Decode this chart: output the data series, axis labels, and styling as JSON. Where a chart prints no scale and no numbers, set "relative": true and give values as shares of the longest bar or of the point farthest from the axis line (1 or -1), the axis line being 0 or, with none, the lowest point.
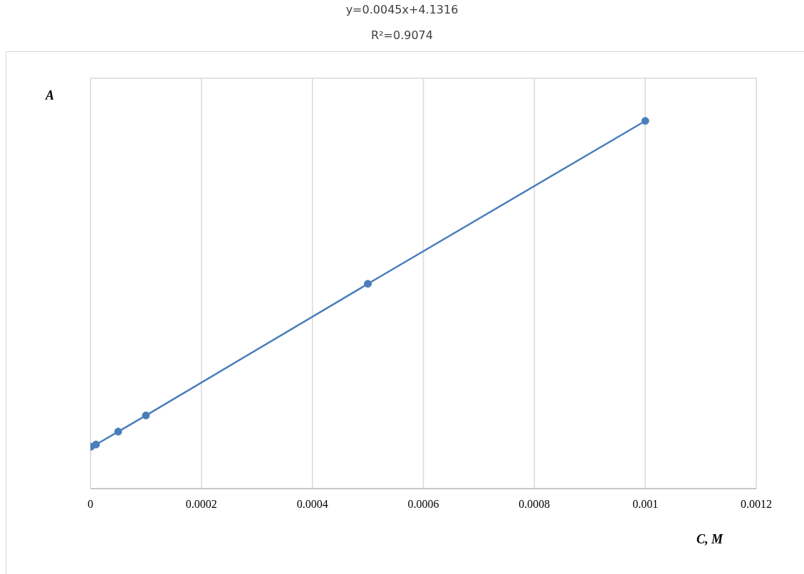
{
  "chart_data": {
    "type": "line",
    "title": "y=0.0045x+4.1316",
    "subtitle": "R²=0.9074",
    "xlabel": "C, M",
    "ylabel": "A",
    "relative": true,
    "x": [
      1e-06,
      1e-05,
      5e-05,
      0.0001,
      0.0005,
      0.001
    ],
    "series": [
      {
        "color": "#4a7ebb",
        "values": [
          0.114,
          0.12,
          0.155,
          0.199,
          0.557,
          1
        ]
      }
    ],
    "xlim": [
      0,
      0.0012
    ],
    "xticks": [
      0,
      0.0002,
      0.0004,
      0.0006,
      0.0008,
      0.001,
      0.0012
    ],
    "grid": true,
    "marker": "circle",
    "line_style": "solid"
  }
}
